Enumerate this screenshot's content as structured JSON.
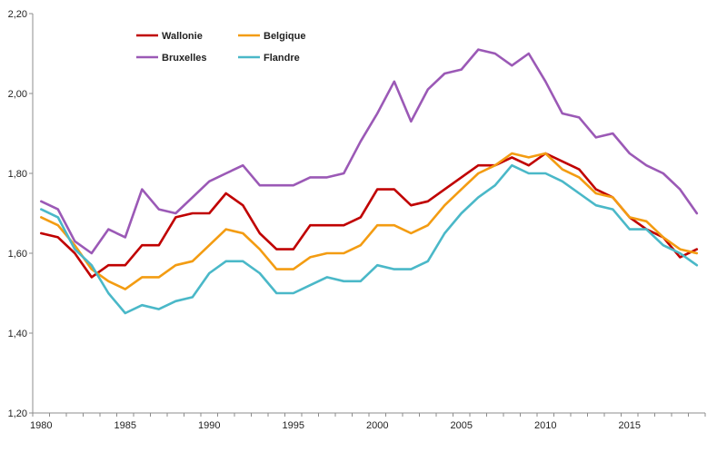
{
  "chart_data": {
    "type": "line",
    "title": "",
    "xlabel": "",
    "ylabel": "",
    "xlim": [
      1979.5,
      2019.5
    ],
    "ylim": [
      1.2,
      2.2
    ],
    "x": [
      1980,
      1981,
      1982,
      1983,
      1984,
      1985,
      1986,
      1987,
      1988,
      1989,
      1990,
      1991,
      1992,
      1993,
      1994,
      1995,
      1996,
      1997,
      1998,
      1999,
      2000,
      2001,
      2002,
      2003,
      2004,
      2005,
      2006,
      2007,
      2008,
      2009,
      2010,
      2011,
      2012,
      2013,
      2014,
      2015,
      2016,
      2017,
      2018,
      2019
    ],
    "x_ticks": [
      1980,
      1985,
      1990,
      1995,
      2000,
      2005,
      2010,
      2015
    ],
    "x_tick_labels": [
      "1980",
      "1985",
      "1990",
      "1995",
      "2000",
      "2005",
      "2010",
      "2015"
    ],
    "y_ticks": [
      1.2,
      1.4,
      1.6,
      1.8,
      2.0,
      2.2
    ],
    "y_tick_labels": [
      "1,20",
      "1,40",
      "1,60",
      "1,80",
      "2,00",
      "2,20"
    ],
    "grid": false,
    "legend_position": "top-left",
    "series": [
      {
        "name": "Wallonie",
        "color": "#c00000",
        "values": [
          1.65,
          1.64,
          1.6,
          1.54,
          1.57,
          1.57,
          1.62,
          1.62,
          1.69,
          1.7,
          1.7,
          1.75,
          1.72,
          1.65,
          1.61,
          1.61,
          1.67,
          1.67,
          1.67,
          1.69,
          1.76,
          1.76,
          1.72,
          1.73,
          1.76,
          1.79,
          1.82,
          1.82,
          1.84,
          1.82,
          1.85,
          1.83,
          1.81,
          1.76,
          1.74,
          1.69,
          1.66,
          1.64,
          1.59,
          1.61
        ]
      },
      {
        "name": "Belgique",
        "color": "#f39c12",
        "values": [
          1.69,
          1.67,
          1.62,
          1.56,
          1.53,
          1.51,
          1.54,
          1.54,
          1.57,
          1.58,
          1.62,
          1.66,
          1.65,
          1.61,
          1.56,
          1.56,
          1.59,
          1.6,
          1.6,
          1.62,
          1.67,
          1.67,
          1.65,
          1.67,
          1.72,
          1.76,
          1.8,
          1.82,
          1.85,
          1.84,
          1.85,
          1.81,
          1.79,
          1.75,
          1.74,
          1.69,
          1.68,
          1.64,
          1.61,
          1.6
        ]
      },
      {
        "name": "Bruxelles",
        "color": "#9b59b6",
        "values": [
          1.73,
          1.71,
          1.63,
          1.6,
          1.66,
          1.64,
          1.76,
          1.71,
          1.7,
          1.74,
          1.78,
          1.8,
          1.82,
          1.77,
          1.77,
          1.77,
          1.79,
          1.79,
          1.8,
          1.88,
          1.95,
          2.03,
          1.93,
          2.01,
          2.05,
          2.06,
          2.11,
          2.1,
          2.07,
          2.1,
          2.03,
          1.95,
          1.94,
          1.89,
          1.9,
          1.85,
          1.82,
          1.8,
          1.76,
          1.7
        ]
      },
      {
        "name": "Flandre",
        "color": "#4ab8c8",
        "values": [
          1.71,
          1.69,
          1.61,
          1.57,
          1.5,
          1.45,
          1.47,
          1.46,
          1.48,
          1.49,
          1.55,
          1.58,
          1.58,
          1.55,
          1.5,
          1.5,
          1.52,
          1.54,
          1.53,
          1.53,
          1.57,
          1.56,
          1.56,
          1.58,
          1.65,
          1.7,
          1.74,
          1.77,
          1.82,
          1.8,
          1.8,
          1.78,
          1.75,
          1.72,
          1.71,
          1.66,
          1.66,
          1.62,
          1.6,
          1.57
        ]
      }
    ]
  }
}
